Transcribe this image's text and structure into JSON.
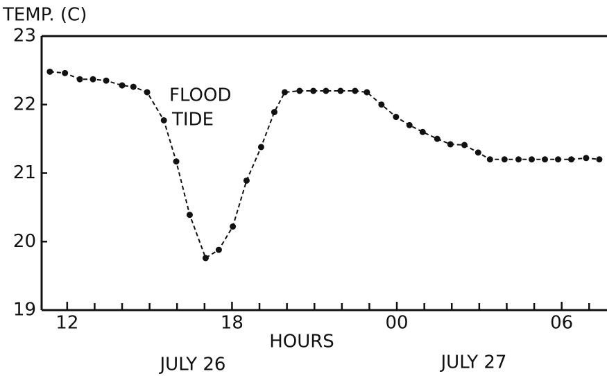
{
  "chart_data": {
    "type": "line",
    "y_label": "TEMP. (C)",
    "x_label": "HOURS",
    "date_labels": [
      "JULY 26",
      "JULY 27"
    ],
    "annotation": [
      "FLOOD",
      "TIDE"
    ],
    "x": [
      11.37,
      11.92,
      12.46,
      12.94,
      13.42,
      14.0,
      14.41,
      14.91,
      15.52,
      15.97,
      16.46,
      17.04,
      17.52,
      18.03,
      18.53,
      19.06,
      19.54,
      19.92,
      20.46,
      20.96,
      21.42,
      21.95,
      22.48,
      22.91,
      23.44,
      23.97,
      24.46,
      24.94,
      25.47,
      25.95,
      26.46,
      26.96,
      27.39,
      27.92,
      28.43,
      28.91,
      29.39,
      29.87,
      30.35,
      30.89,
      31.37
    ],
    "series": [
      {
        "color": "#111111",
        "values": [
          22.48,
          22.46,
          22.37,
          22.37,
          22.35,
          22.28,
          22.26,
          22.18,
          21.77,
          21.17,
          20.39,
          19.76,
          19.88,
          20.22,
          20.89,
          21.38,
          21.89,
          22.18,
          22.2,
          22.2,
          22.2,
          22.2,
          22.2,
          22.18,
          22.0,
          21.82,
          21.7,
          21.6,
          21.5,
          21.42,
          21.41,
          21.3,
          21.2,
          21.2,
          21.2,
          21.2,
          21.2,
          21.2,
          21.2,
          21.22,
          21.2
        ]
      }
    ],
    "xlim": [
      11.07,
      31.65
    ],
    "xticks": [
      12,
      18,
      {
        "value": 24,
        "label": "00"
      },
      {
        "value": 30,
        "label": "06"
      }
    ],
    "x_minor_ticks": [
      13,
      14,
      15,
      16,
      17,
      19,
      20,
      21,
      22,
      23,
      25,
      26,
      27,
      28,
      29,
      31
    ],
    "ylim": [
      19,
      23
    ],
    "yticks": [
      19,
      20,
      21,
      22,
      23
    ]
  }
}
